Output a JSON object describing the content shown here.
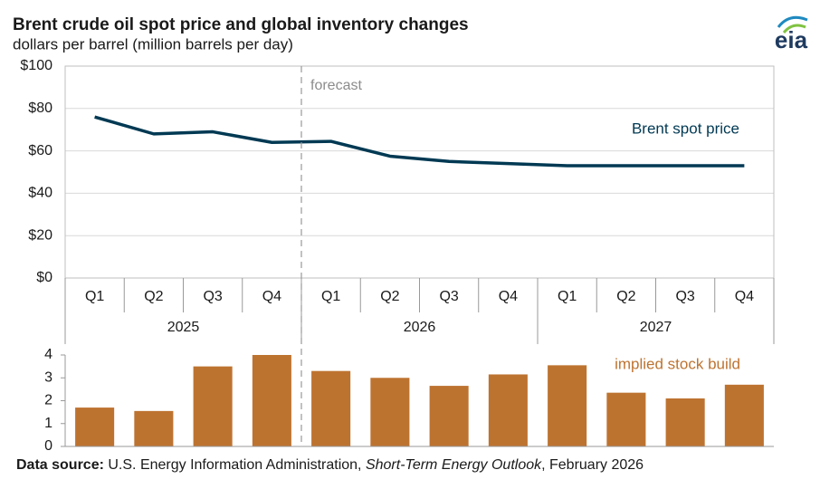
{
  "chart_data": [
    {
      "type": "line",
      "title": "Brent crude oil spot price and global inventory changes",
      "subtitle": "dollars per barrel (million barrels per day)",
      "annotation": "forecast",
      "categories": [
        "Q1",
        "Q2",
        "Q3",
        "Q4",
        "Q1",
        "Q2",
        "Q3",
        "Q4",
        "Q1",
        "Q2",
        "Q3",
        "Q4"
      ],
      "group_labels": [
        "2025",
        "2026",
        "2027"
      ],
      "series": [
        {
          "name": "Brent spot price",
          "color": "#003953",
          "values": [
            76,
            68,
            69,
            64,
            64.5,
            57.5,
            55,
            54,
            53,
            53,
            53,
            53
          ]
        }
      ],
      "ylim": [
        0,
        100
      ],
      "yticks": [
        {
          "value": 0,
          "label": "$0"
        },
        {
          "value": 20,
          "label": "$20"
        },
        {
          "value": 40,
          "label": "$40"
        },
        {
          "value": 60,
          "label": "$60"
        },
        {
          "value": 80,
          "label": "$80"
        },
        {
          "value": 100,
          "label": "$100"
        }
      ],
      "grid": true
    },
    {
      "type": "bar",
      "series": [
        {
          "name": "implied stock build",
          "color": "#bd7330",
          "values": [
            1.7,
            1.55,
            3.5,
            4.0,
            3.3,
            3.0,
            2.65,
            3.15,
            3.55,
            2.35,
            2.1,
            2.7
          ]
        }
      ],
      "ylim": [
        0,
        4
      ],
      "yticks": [
        0,
        1,
        2,
        3,
        4
      ],
      "grid": false
    }
  ],
  "source": {
    "label": "Data source:",
    "text": "U.S. Energy Information Administration,",
    "italic": "Short-Term Energy Outlook",
    "date": ", February 2026"
  },
  "logo": "eia"
}
